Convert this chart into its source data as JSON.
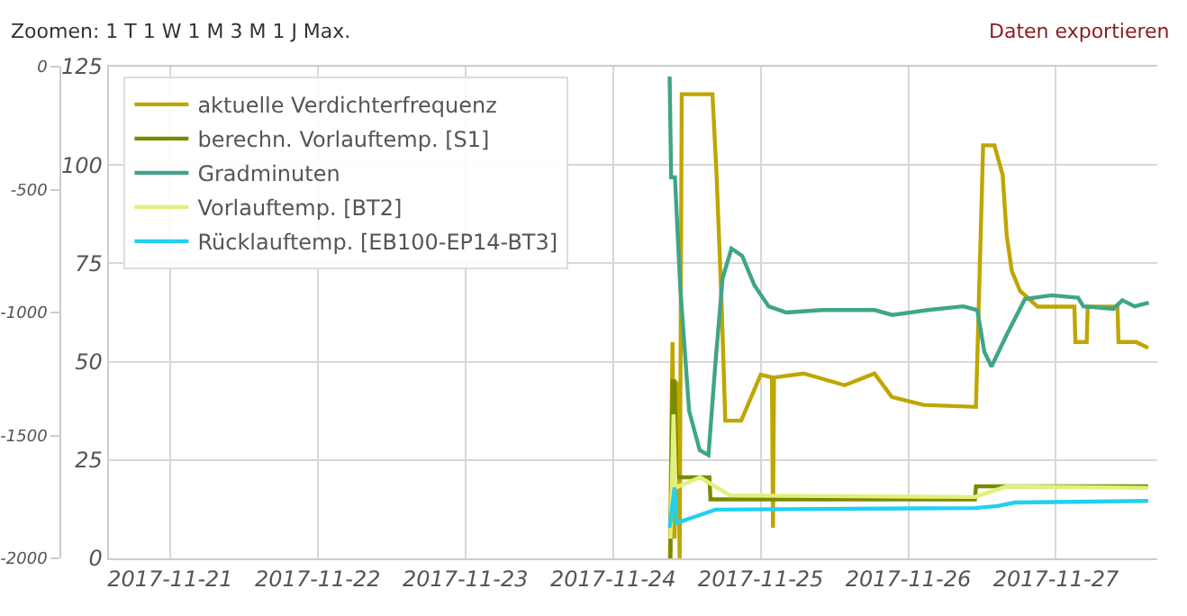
{
  "chart_data": {
    "type": "line",
    "annotations": [
      "Zoomen: 1 T 1 W 1 M 3 M 1 J Max.",
      "Daten exportieren"
    ],
    "xlim": [
      "2017-11-20T14:00",
      "2017-11-27T16:30"
    ],
    "xticks": [
      {
        "value": "2017-11-21",
        "label": "2017-11-21"
      },
      {
        "value": "2017-11-22",
        "label": "2017-11-22"
      },
      {
        "value": "2017-11-23",
        "label": "2017-11-23"
      },
      {
        "value": "2017-11-24",
        "label": "2017-11-24"
      },
      {
        "value": "2017-11-25",
        "label": "2017-11-25"
      },
      {
        "value": "2017-11-26",
        "label": "2017-11-26"
      },
      {
        "value": "2017-11-27",
        "label": "2017-11-27"
      }
    ],
    "ylim": [
      0,
      125
    ],
    "yticks": [
      0,
      25,
      50,
      75,
      100,
      125
    ],
    "y2lim": [
      -2000,
      0
    ],
    "y2ticks": [
      -2000,
      -1500,
      -1000,
      -500,
      0
    ],
    "grid": true,
    "legend": "top left",
    "marker": "none",
    "line_style": "solid",
    "series": [
      {
        "name": "aktuelle Verdichterfrequenz",
        "color": "#bfa600",
        "x": [
          "2017-11-24T09:15",
          "2017-11-24T09:40",
          "2017-11-24T10:00",
          "2017-11-24T10:30",
          "2017-11-24T10:50",
          "2017-11-24T11:10",
          "2017-11-24T16:10",
          "2017-11-24T16:50",
          "2017-11-24T17:40",
          "2017-11-24T18:15",
          "2017-11-24T20:50",
          "2017-11-25T00:00",
          "2017-11-25T01:50",
          "2017-11-25T02:00",
          "2017-11-25T02:10",
          "2017-11-25T07:00",
          "2017-11-25T13:40",
          "2017-11-25T18:30",
          "2017-11-25T21:20",
          "2017-11-26T02:30",
          "2017-11-26T11:00",
          "2017-11-26T12:10",
          "2017-11-26T14:00",
          "2017-11-26T15:20",
          "2017-11-26T16:00",
          "2017-11-26T16:50",
          "2017-11-26T18:10",
          "2017-11-26T21:00",
          "2017-11-27T00:40",
          "2017-11-27T03:00",
          "2017-11-27T03:10",
          "2017-11-27T05:00",
          "2017-11-27T05:10",
          "2017-11-27T10:00",
          "2017-11-27T10:10",
          "2017-11-27T13:00",
          "2017-11-27T15:00"
        ],
        "values": [
          0,
          55,
          5,
          45,
          0,
          118,
          118,
          97.5,
          64,
          35,
          35,
          46.7,
          46,
          7.8,
          46,
          47,
          44,
          47,
          41,
          39,
          38.5,
          105,
          105,
          97.5,
          82,
          73,
          68,
          64,
          64,
          64,
          55,
          55,
          64,
          64,
          55,
          55,
          53.5
        ]
      },
      {
        "name": "berechn. Vorlauftemp. [S1]",
        "color": "#7a8a00",
        "x": [
          "2017-11-24T09:20",
          "2017-11-24T09:40",
          "2017-11-24T10:00",
          "2017-11-24T10:20",
          "2017-11-24T15:40",
          "2017-11-24T15:50",
          "2017-11-26T10:50",
          "2017-11-26T11:00",
          "2017-11-27T15:00"
        ],
        "values": [
          0,
          45,
          45,
          20.6,
          20.6,
          15,
          15,
          18.3,
          18.3
        ]
      },
      {
        "name": "Gradminuten",
        "color": "#3fa58a",
        "axis": "y2",
        "x": [
          "2017-11-24T09:12",
          "2017-11-24T09:27",
          "2017-11-24T10:04",
          "2017-11-24T10:56",
          "2017-11-24T12:22",
          "2017-11-24T14:05",
          "2017-11-24T15:31",
          "2017-11-24T16:40",
          "2017-11-24T17:49",
          "2017-11-24T19:15",
          "2017-11-24T21:00",
          "2017-11-24T23:00",
          "2017-11-25T01:18",
          "2017-11-25T04:10",
          "2017-11-25T09:55",
          "2017-11-25T18:32",
          "2017-11-25T21:24",
          "2017-11-26T03:10",
          "2017-11-26T08:55",
          "2017-11-26T11:13",
          "2017-11-26T12:22",
          "2017-11-26T13:31",
          "2017-11-26T16:06",
          "2017-11-26T18:58",
          "2017-11-26T23:17",
          "2017-11-27T03:36",
          "2017-11-27T04:28",
          "2017-11-27T09:21",
          "2017-11-27T10:47",
          "2017-11-27T12:48",
          "2017-11-27T15:06"
        ],
        "values": [
          -40,
          -450,
          -450,
          -900,
          -1400,
          -1560,
          -1580,
          -1200,
          -860,
          -740,
          -770,
          -890,
          -975,
          -1000,
          -990,
          -990,
          -1010,
          -990,
          -975,
          -990,
          -1160,
          -1220,
          -1085,
          -945,
          -930,
          -940,
          -975,
          -985,
          -950,
          -975,
          -960
        ]
      },
      {
        "name": "Vorlauftemp. [BT2]",
        "color": "#e2f07c",
        "x": [
          "2017-11-24T09:20",
          "2017-11-24T09:50",
          "2017-11-24T10:10",
          "2017-11-24T14:10",
          "2017-11-24T19:00",
          "2017-11-26T10:50",
          "2017-11-26T16:00",
          "2017-11-27T15:00"
        ],
        "values": [
          5,
          36.6,
          18,
          20.6,
          16,
          15.6,
          18.3,
          17.9
        ]
      },
      {
        "name": "Rücklauftemp. [EB100-EP14-BT3]",
        "color": "#22d0f0",
        "x": [
          "2017-11-24T09:12",
          "2017-11-24T10:00",
          "2017-11-24T10:20",
          "2017-11-24T16:40",
          "2017-11-26T10:50",
          "2017-11-26T14:30",
          "2017-11-26T17:20",
          "2017-11-27T15:00"
        ],
        "values": [
          7.8,
          18,
          9,
          12.4,
          12.8,
          13.3,
          14.2,
          14.6
        ]
      }
    ]
  }
}
